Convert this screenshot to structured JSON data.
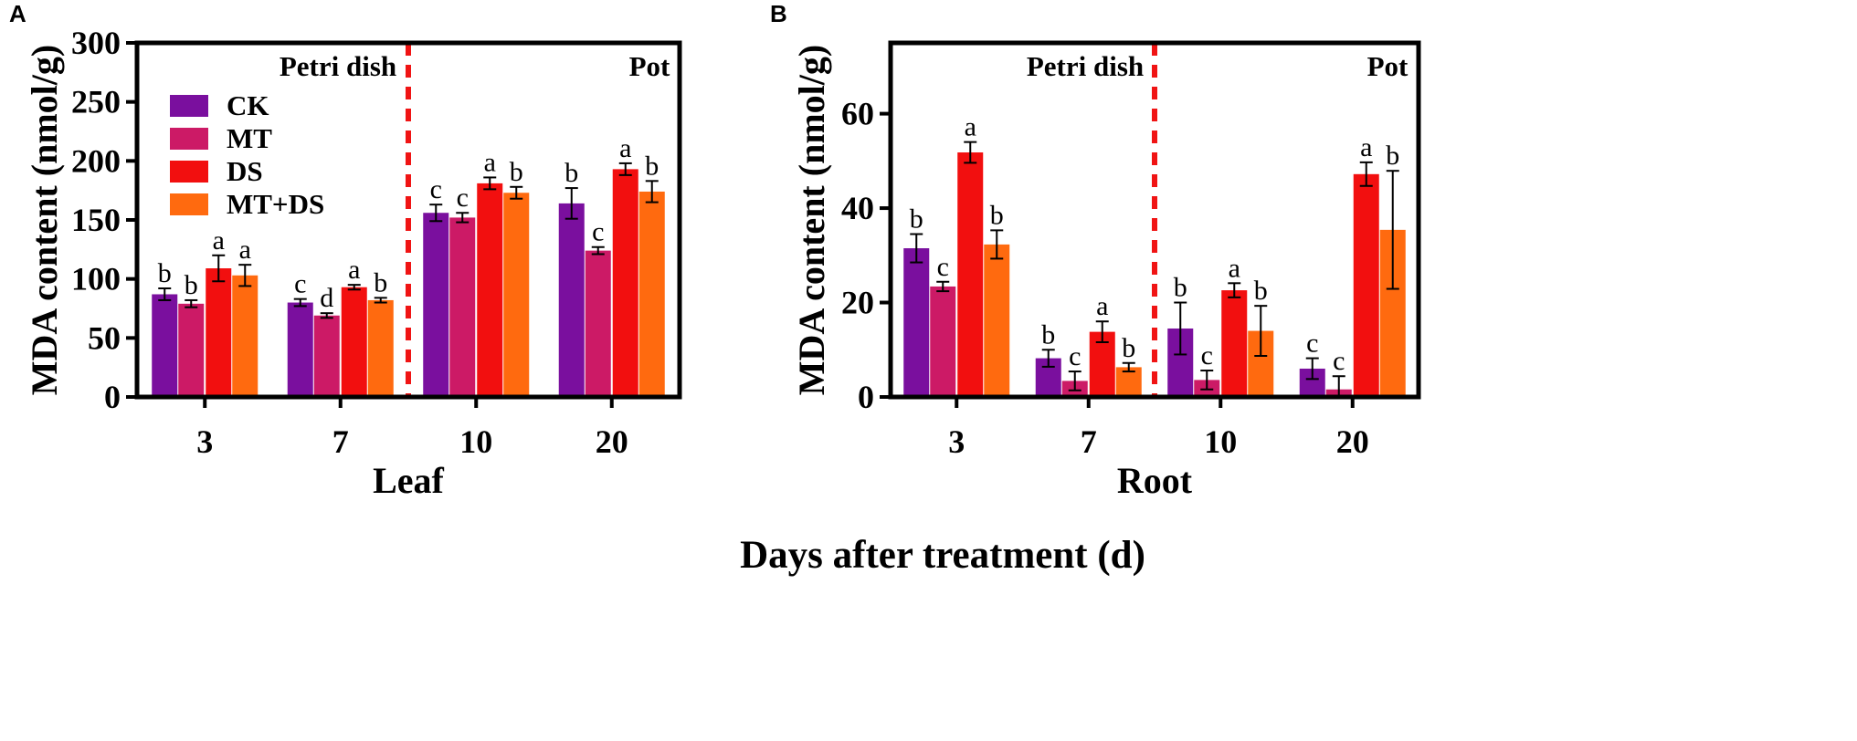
{
  "figure": {
    "shared_xlabel": "Days after treatment (d)"
  },
  "legend": {
    "entries": [
      {
        "name": "CK",
        "color": "#7a0f9e"
      },
      {
        "name": "MT",
        "color": "#cc1a66"
      },
      {
        "name": "DS",
        "color": "#f20f0f"
      },
      {
        "name": "MT+DS",
        "color": "#ff6a0f"
      }
    ]
  },
  "chart_data": [
    {
      "panel": "A",
      "type": "bar",
      "title": "",
      "xlabel": "Leaf",
      "ylabel": "MDA content (nmol/g)",
      "ylim": [
        0,
        300
      ],
      "yticks": [
        0,
        50,
        100,
        150,
        200,
        250,
        300
      ],
      "categories": [
        "3",
        "7",
        "10",
        "20"
      ],
      "regions": [
        "Petri dish",
        "Pot"
      ],
      "series": [
        {
          "name": "CK",
          "color": "#7a0f9e",
          "values": [
            87,
            80,
            156,
            164
          ],
          "errors": [
            5,
            3,
            7,
            13
          ],
          "letters": [
            "b",
            "c",
            "c",
            "b"
          ]
        },
        {
          "name": "MT",
          "color": "#cc1a66",
          "values": [
            79,
            69,
            152,
            124
          ],
          "errors": [
            3,
            2,
            4,
            3
          ],
          "letters": [
            "b",
            "d",
            "c",
            "c"
          ]
        },
        {
          "name": "DS",
          "color": "#f20f0f",
          "values": [
            109,
            93,
            181,
            193
          ],
          "errors": [
            11,
            2,
            5,
            5
          ],
          "letters": [
            "a",
            "a",
            "a",
            "a"
          ]
        },
        {
          "name": "MT+DS",
          "color": "#ff6a0f",
          "values": [
            103,
            82,
            173,
            174
          ],
          "errors": [
            9,
            2,
            5,
            9
          ],
          "letters": [
            "a",
            "b",
            "b",
            "b"
          ]
        }
      ]
    },
    {
      "panel": "B",
      "type": "bar",
      "title": "",
      "xlabel": "Root",
      "ylabel": "MDA content (nmol/g)",
      "ylim": [
        0,
        75
      ],
      "yticks": [
        0,
        20,
        40,
        60
      ],
      "categories": [
        "3",
        "7",
        "10",
        "20"
      ],
      "regions": [
        "Petri dish",
        "Pot"
      ],
      "series": [
        {
          "name": "CK",
          "color": "#7a0f9e",
          "values": [
            31.5,
            8.2,
            14.5,
            6.0
          ],
          "errors": [
            3.0,
            1.8,
            5.5,
            2.2
          ],
          "letters": [
            "b",
            "b",
            "b",
            "c"
          ]
        },
        {
          "name": "MT",
          "color": "#cc1a66",
          "values": [
            23.4,
            3.4,
            3.6,
            1.6
          ],
          "errors": [
            1.0,
            2.0,
            2.0,
            2.8
          ],
          "letters": [
            "c",
            "c",
            "c",
            "c"
          ]
        },
        {
          "name": "DS",
          "color": "#f20f0f",
          "values": [
            51.8,
            13.8,
            22.6,
            47.2
          ],
          "errors": [
            2.2,
            2.2,
            1.5,
            2.5
          ],
          "letters": [
            "a",
            "a",
            "a",
            "a"
          ]
        },
        {
          "name": "MT+DS",
          "color": "#ff6a0f",
          "values": [
            32.3,
            6.3,
            14.0,
            35.4
          ],
          "errors": [
            3.0,
            0.9,
            5.3,
            12.5
          ],
          "letters": [
            "b",
            "b",
            "b",
            "b"
          ]
        }
      ]
    }
  ]
}
